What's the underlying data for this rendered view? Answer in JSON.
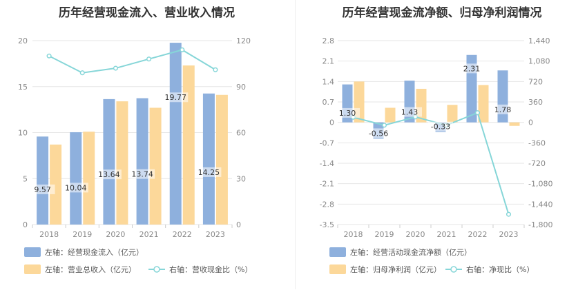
{
  "chart_data": [
    {
      "type": "bar",
      "title": "历年经营现金流入、营业收入情况",
      "categories": [
        "2018",
        "2019",
        "2020",
        "2021",
        "2022",
        "2023"
      ],
      "left_axis": {
        "ticks": [
          "0",
          "5",
          "10",
          "15",
          "20"
        ],
        "range": [
          0,
          20
        ]
      },
      "right_axis": {
        "ticks": [
          "0",
          "30",
          "60",
          "90",
          "120"
        ],
        "range": [
          0,
          120
        ]
      },
      "series": [
        {
          "name": "左轴：经营现金流入（亿元）",
          "axis": "left",
          "type": "bar",
          "color": "#8eb0dd",
          "values": [
            9.57,
            10.04,
            13.64,
            13.74,
            19.77,
            14.25
          ],
          "labels": [
            "9.57",
            "10.04",
            "13.64",
            "13.74",
            "19.77",
            "14.25"
          ]
        },
        {
          "name": "左轴：营业总收入（亿元）",
          "axis": "left",
          "type": "bar",
          "color": "#fcd89a",
          "values": [
            8.7,
            10.1,
            13.4,
            12.7,
            17.3,
            14.1
          ]
        },
        {
          "name": "右轴：营收现金比（%）",
          "axis": "right",
          "type": "line",
          "color": "#86d6d8",
          "values": [
            110,
            99,
            102,
            108,
            114,
            101
          ]
        }
      ]
    },
    {
      "type": "bar",
      "title": "历年经营现金流净额、归母净利润情况",
      "categories": [
        "2018",
        "2019",
        "2020",
        "2021",
        "2022",
        "2023"
      ],
      "left_axis": {
        "ticks": [
          "-3.5",
          "-2.8",
          "-2.1",
          "-1.4",
          "-0.7",
          "0",
          "0.7",
          "1.4",
          "2.1",
          "2.8"
        ],
        "range": [
          -3.5,
          2.8
        ]
      },
      "right_axis": {
        "ticks": [
          "-1,800",
          "-1,440",
          "-1,080",
          "-720",
          "-360",
          "0",
          "360",
          "720",
          "1,080",
          "1,440"
        ],
        "range": [
          -1800,
          1440
        ]
      },
      "series": [
        {
          "name": "左轴：经营活动现金流净额（亿元）",
          "axis": "left",
          "type": "bar",
          "color": "#8eb0dd",
          "values": [
            1.3,
            -0.56,
            1.43,
            -0.33,
            2.31,
            1.78
          ],
          "labels": [
            "1.30",
            "-0.56",
            "1.43",
            "-0.33",
            "2.31",
            "1.78"
          ]
        },
        {
          "name": "左轴：归母净利润（亿元）",
          "axis": "left",
          "type": "bar",
          "color": "#fcd89a",
          "values": [
            1.4,
            0.5,
            1.15,
            0.6,
            1.28,
            -0.12
          ]
        },
        {
          "name": "右轴：净现比（%）",
          "axis": "right",
          "type": "line",
          "color": "#86d6d8",
          "values": [
            90,
            -50,
            95,
            -50,
            170,
            -1620
          ]
        }
      ]
    }
  ]
}
